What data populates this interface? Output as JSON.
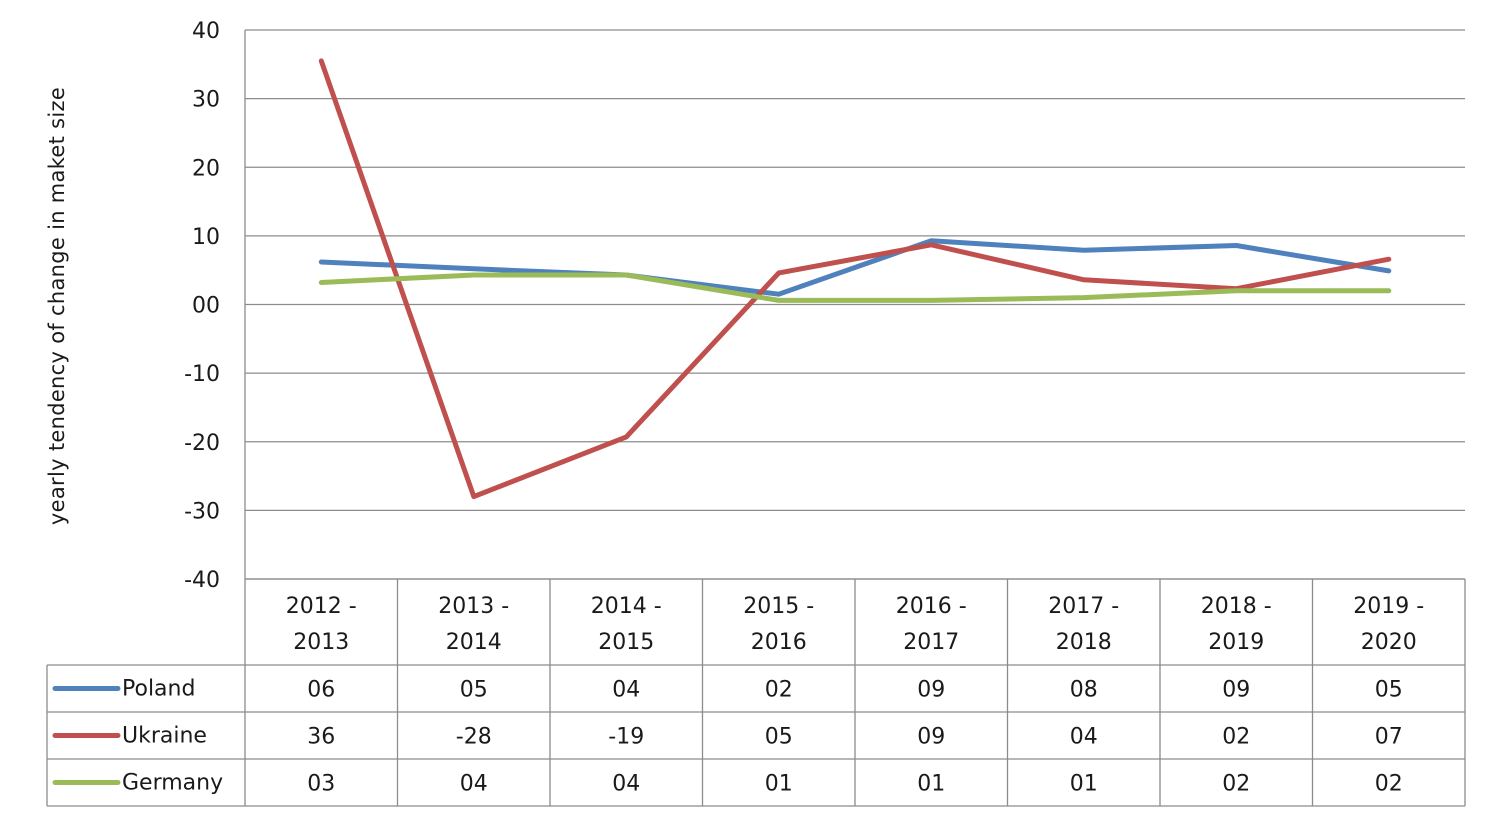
{
  "chart_data": {
    "type": "line",
    "ylabel": "yearly tendency of change in maket size",
    "xlabel": "",
    "ylim": [
      -40,
      40
    ],
    "ytick_labels": [
      "40",
      "30",
      "20",
      "10",
      "00",
      "-10",
      "-20",
      "-30",
      "-40"
    ],
    "yticks": [
      40,
      30,
      20,
      10,
      0,
      -10,
      -20,
      -30,
      -40
    ],
    "grid": true,
    "legend_placement": "data-table-left",
    "categories": [
      [
        "2012 -",
        "2013"
      ],
      [
        "2013 -",
        "2014"
      ],
      [
        "2014 -",
        "2015"
      ],
      [
        "2015 -",
        "2016"
      ],
      [
        "2016 -",
        "2017"
      ],
      [
        "2017 -",
        "2018"
      ],
      [
        "2018 -",
        "2019"
      ],
      [
        "2019 -",
        "2020"
      ]
    ],
    "series": [
      {
        "name": "Poland",
        "color": "#4f81bd",
        "values": [
          6.2,
          5.2,
          4.3,
          1.5,
          9.3,
          7.9,
          8.6,
          4.9
        ],
        "table_labels": [
          "06",
          "05",
          "04",
          "02",
          "09",
          "08",
          "09",
          "05"
        ]
      },
      {
        "name": "Ukraine",
        "color": "#c0504d",
        "values": [
          35.5,
          -28.0,
          -19.3,
          4.6,
          8.7,
          3.6,
          2.3,
          6.6
        ],
        "table_labels": [
          "36",
          "-28",
          "-19",
          "05",
          "09",
          "04",
          "02",
          "07"
        ]
      },
      {
        "name": "Germany",
        "color": "#9bbb59",
        "values": [
          3.2,
          4.3,
          4.3,
          0.6,
          0.6,
          1.0,
          2.0,
          2.0
        ],
        "table_labels": [
          "03",
          "04",
          "04",
          "01",
          "01",
          "01",
          "02",
          "02"
        ]
      }
    ]
  }
}
